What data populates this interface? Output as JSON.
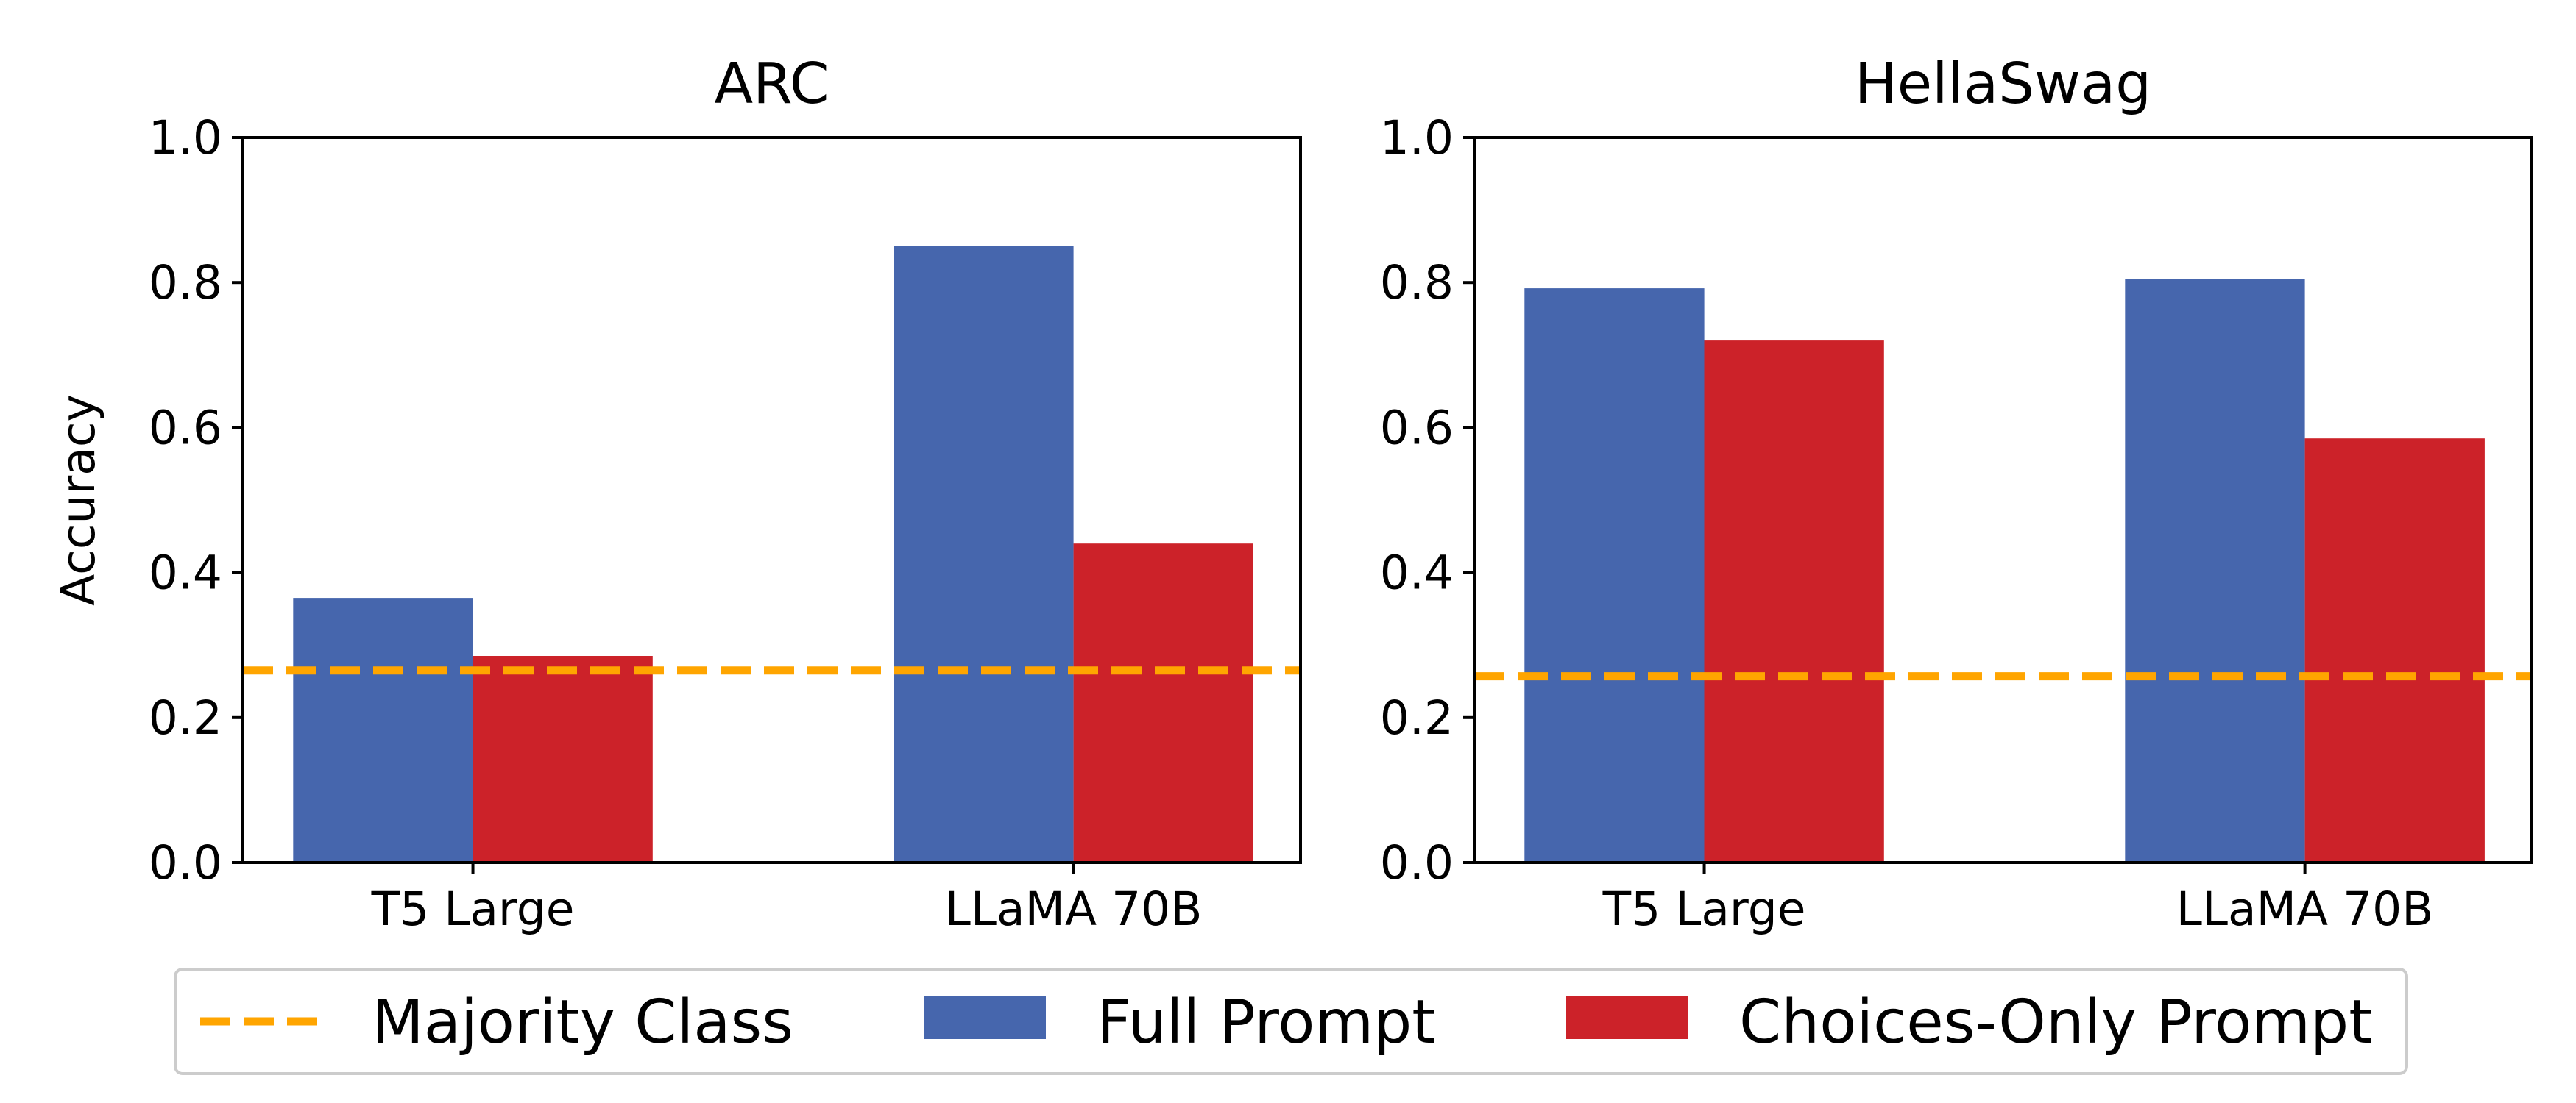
{
  "chart_data": {
    "type": "bar",
    "ylabel": "Accuracy",
    "ylim": [
      0,
      1.0
    ],
    "yticks": [
      "0.0",
      "0.2",
      "0.4",
      "0.6",
      "0.8",
      "1.0"
    ],
    "categories": [
      "T5 Large",
      "LLaMA 70B"
    ],
    "panels": [
      {
        "title": "ARC",
        "series": [
          {
            "name": "Full Prompt",
            "values": [
              0.365,
              0.85
            ]
          },
          {
            "name": "Choices-Only Prompt",
            "values": [
              0.285,
              0.44
            ]
          }
        ],
        "majority_class": 0.265
      },
      {
        "title": "HellaSwag",
        "series": [
          {
            "name": "Full Prompt",
            "values": [
              0.792,
              0.805
            ]
          },
          {
            "name": "Choices-Only Prompt",
            "values": [
              0.72,
              0.585
            ]
          }
        ],
        "majority_class": 0.257
      }
    ],
    "legend": {
      "position": "bottom-center",
      "entries": [
        "Majority Class",
        "Full Prompt",
        "Choices-Only Prompt"
      ]
    }
  },
  "colors": {
    "full_prompt": "#4666ad",
    "choices_only": "#cc2229",
    "majority_class": "#ffa500"
  }
}
